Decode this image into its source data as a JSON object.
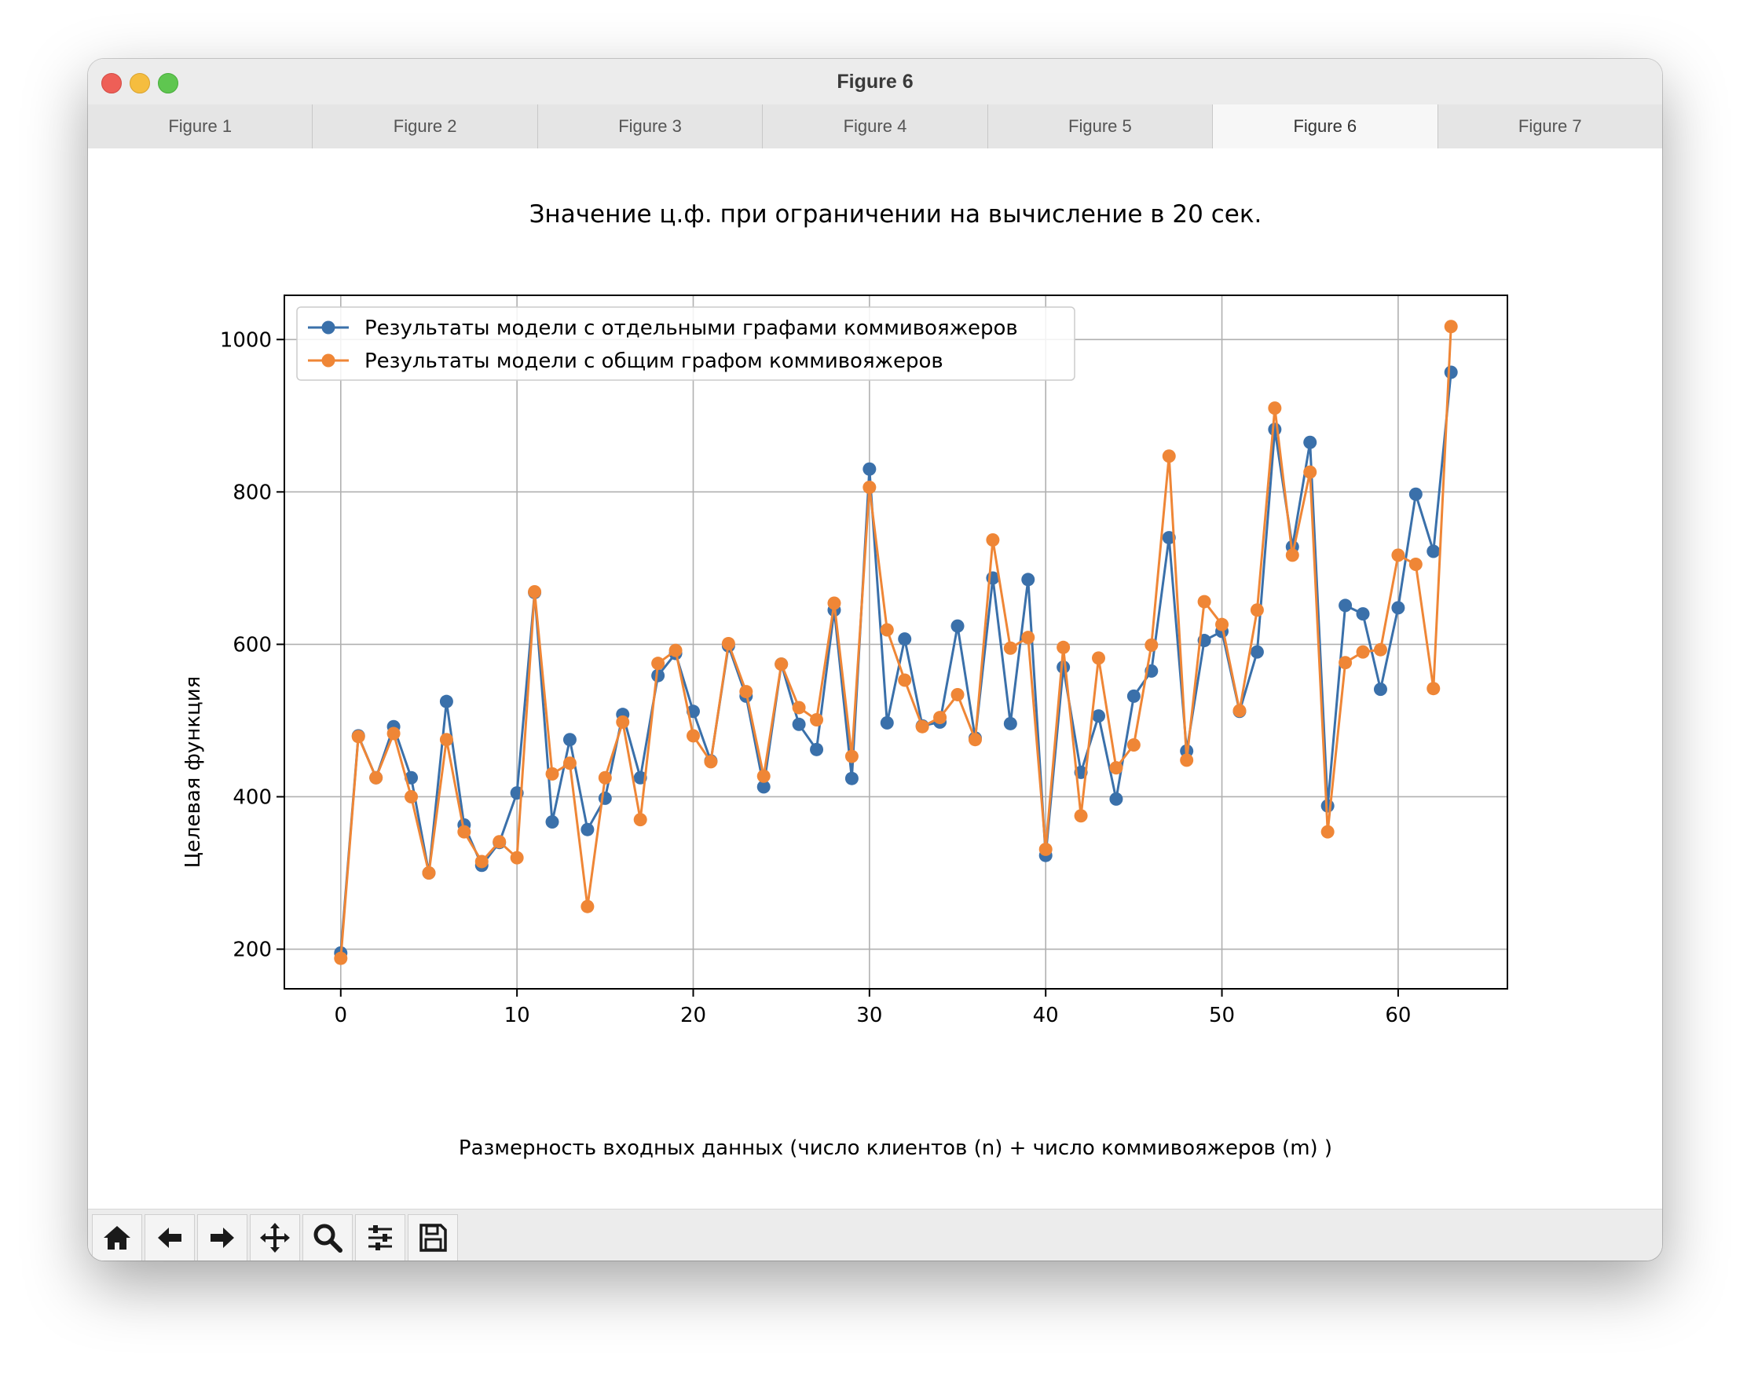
{
  "window": {
    "title": "Figure 6"
  },
  "tabs": [
    {
      "label": "Figure 1"
    },
    {
      "label": "Figure 2"
    },
    {
      "label": "Figure 3"
    },
    {
      "label": "Figure 4"
    },
    {
      "label": "Figure 5"
    },
    {
      "label": "Figure 6",
      "active": true
    },
    {
      "label": "Figure 7"
    }
  ],
  "toolbar": {
    "buttons": [
      "home-icon",
      "back-arrow-icon",
      "forward-arrow-icon",
      "pan-move-icon",
      "zoom-magnifier-icon",
      "configure-sliders-icon",
      "save-floppy-icon"
    ]
  },
  "chart_data": {
    "type": "line",
    "title": "Значение ц.ф. при ограничении на вычисление в 20 сек.",
    "xlabel": "Размерность входных данных (число клиентов (n) + число коммивояжеров (m) )",
    "ylabel": "Целевая функция",
    "xlim": [
      -3.2,
      66.2
    ],
    "ylim": [
      148,
      1058
    ],
    "xticks": [
      0,
      10,
      20,
      30,
      40,
      50,
      60
    ],
    "yticks": [
      200,
      400,
      600,
      800,
      1000
    ],
    "grid": true,
    "legend_position": "upper-left",
    "marker": "circle",
    "series": [
      {
        "name": "Результаты модели с отдельными графами коммивояжеров",
        "color": "#3a70aa",
        "values": [
          195,
          480,
          425,
          492,
          425,
          300,
          525,
          363,
          310,
          340,
          405,
          668,
          367,
          475,
          357,
          398,
          508,
          425,
          559,
          588,
          512,
          447,
          598,
          532,
          413,
          574,
          495,
          462,
          645,
          424,
          830,
          497,
          607,
          493,
          498,
          624,
          477,
          687,
          496,
          685,
          323,
          570,
          432,
          506,
          397,
          532,
          565,
          740,
          460,
          605,
          617,
          512,
          590,
          882,
          728,
          865,
          388,
          651,
          640,
          541,
          648,
          797,
          722,
          957
        ]
      },
      {
        "name": "Результаты модели с общим графом коммивояжеров",
        "color": "#ef8636",
        "values": [
          188,
          479,
          425,
          483,
          400,
          300,
          475,
          354,
          315,
          341,
          320,
          669,
          430,
          444,
          256,
          425,
          498,
          370,
          575,
          592,
          480,
          446,
          601,
          538,
          427,
          574,
          517,
          501,
          654,
          453,
          806,
          619,
          553,
          492,
          504,
          534,
          475,
          737,
          595,
          609,
          331,
          596,
          375,
          582,
          438,
          468,
          599,
          847,
          448,
          656,
          626,
          513,
          645,
          910,
          717,
          826,
          354,
          576,
          590,
          593,
          717,
          705,
          542,
          1017
        ]
      }
    ]
  }
}
